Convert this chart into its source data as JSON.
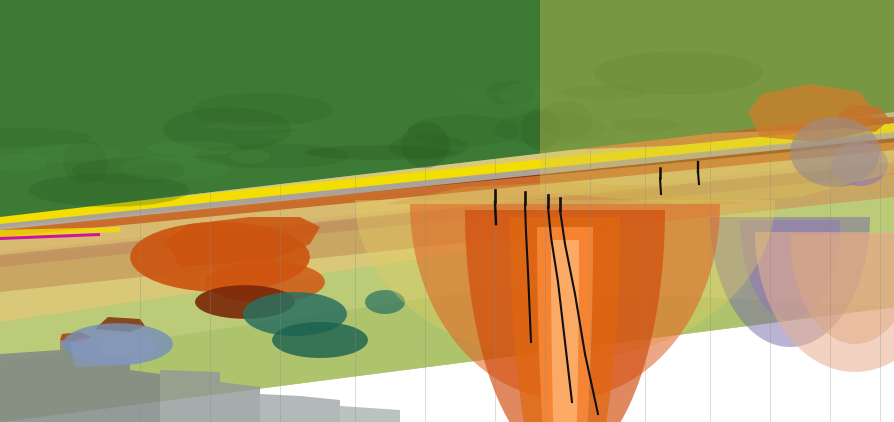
{
  "figsize": [
    8.95,
    4.22
  ],
  "dpi": 100,
  "bg_color": "#ffffff",
  "colors": {
    "terrain_green": "#3d7a35",
    "terrain_dark": "#2a5c22",
    "yellow_layer": "#f2de00",
    "gray_layer": "#b0b0a8",
    "dark_red_layer": "#8b3010",
    "orange_layer": "#c86020",
    "salmon_layer": "#d49060",
    "tan_bg": "#d8c878",
    "light_tan": "#e0d090",
    "light_green": "#b8cc78",
    "medium_green": "#a8c068",
    "orange_blob_main": "#cc5510",
    "orange_blob2": "#d06020",
    "dark_red_blob": "#7a2808",
    "blue_blob": "#7890b8",
    "teal_blob": "#2a7060",
    "magenta": "#cc00aa",
    "purple_blob": "#7868a8",
    "gray_block": "#808888",
    "dome_outer_yellow": "#e8c840",
    "dome_orange1": "#e06018",
    "dome_orange2": "#d04808",
    "dome_bright": "#ff8830",
    "dome_highlight": "#ffc080",
    "dome2_peach": "#e8b090",
    "dome2_light": "#f0c8a8",
    "purple_bump": "#9878b8",
    "vline_color": "#888888",
    "borehole": "#101010"
  }
}
